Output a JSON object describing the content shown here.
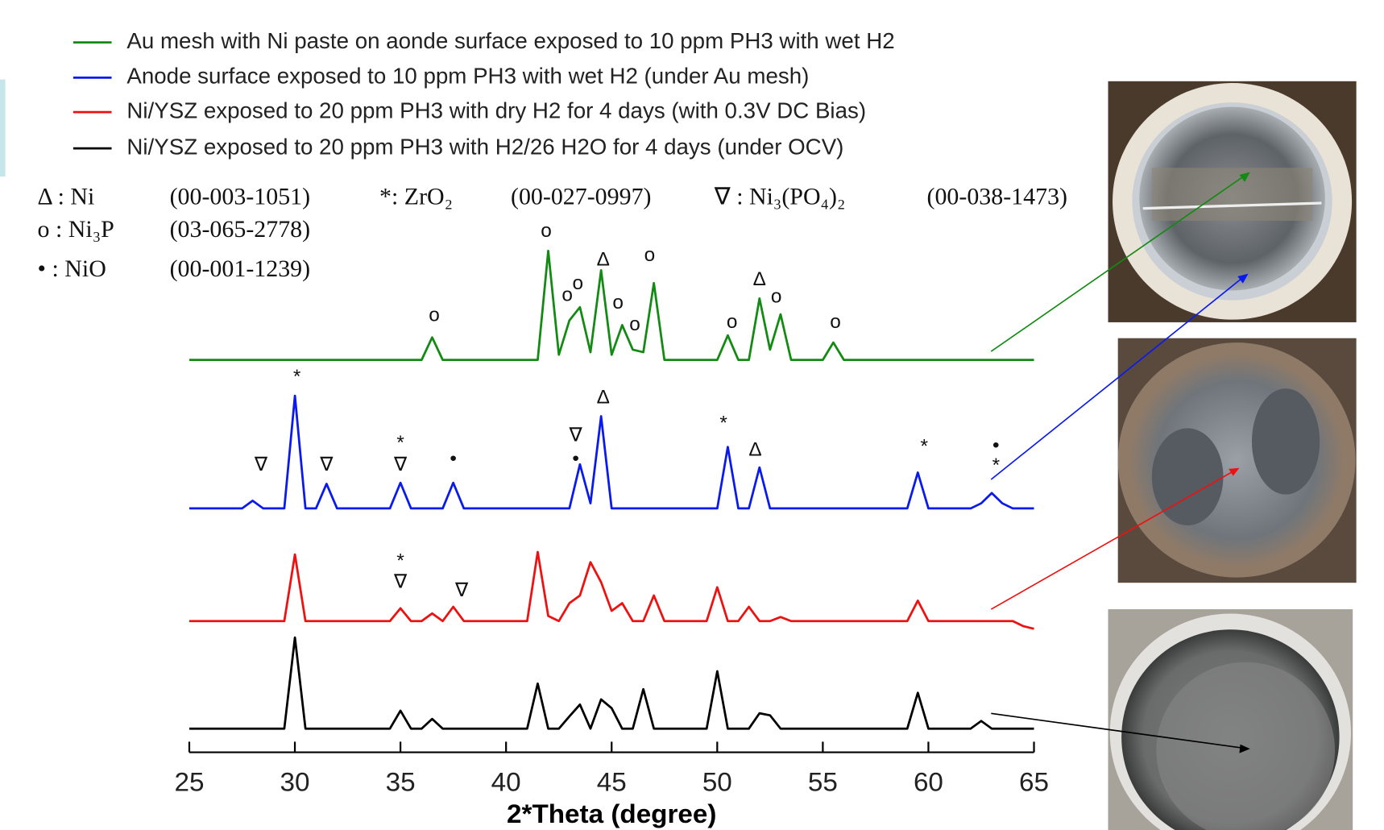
{
  "chart_data": {
    "type": "line",
    "xlabel": "2*Theta (degree)",
    "xlim": [
      25,
      65
    ],
    "xticks": [
      25,
      30,
      35,
      40,
      45,
      50,
      55,
      60,
      65
    ],
    "ylim": [
      0,
      110
    ],
    "legend": "top",
    "x": [
      25,
      25.5,
      26,
      26.5,
      27,
      27.5,
      28,
      28.5,
      29,
      29.5,
      30,
      30.5,
      31,
      31.5,
      32,
      32.5,
      33,
      33.5,
      34,
      34.5,
      35,
      35.5,
      36,
      36.5,
      37,
      37.5,
      38,
      38.5,
      39,
      39.5,
      40,
      40.5,
      41,
      41.5,
      42,
      42.5,
      43,
      43.5,
      44,
      44.5,
      45,
      45.5,
      46,
      46.5,
      47,
      47.5,
      48,
      48.5,
      49,
      49.5,
      50,
      50.5,
      51,
      51.5,
      52,
      52.5,
      53,
      53.5,
      54,
      54.5,
      55,
      55.5,
      56,
      56.5,
      57,
      57.5,
      58,
      58.5,
      59,
      59.5,
      60,
      60.5,
      61,
      61.5,
      62,
      62.5,
      63,
      63.5,
      64,
      64.5,
      65
    ],
    "series": [
      {
        "name": "Au mesh with Ni paste on aonde surface exposed to 10 ppm PH3 with wet H2",
        "color": "#138a13",
        "values": [
          78,
          78,
          78,
          78,
          78,
          78,
          78,
          78,
          78,
          78,
          78,
          78,
          78,
          78,
          78,
          78,
          78,
          78,
          78,
          78,
          78,
          78,
          78,
          82.4,
          78,
          78,
          78,
          78,
          78,
          78,
          78,
          78,
          78,
          78,
          99.3,
          79,
          85.7,
          88.3,
          79.5,
          95.5,
          79,
          84.8,
          80,
          79.5,
          93,
          78,
          78,
          78,
          78,
          78,
          78,
          82.8,
          78,
          78,
          90,
          80,
          86.9,
          78,
          78,
          78,
          78,
          81.4,
          78,
          78,
          78,
          78,
          78,
          78,
          78,
          78,
          78,
          78,
          78,
          78,
          78,
          78,
          78,
          78,
          78,
          78,
          78
        ]
      },
      {
        "name": "Anode surface exposed to 10 ppm PH3 with wet H2 (under Au mesh)",
        "color": "#0a1aee",
        "values": [
          49,
          49,
          49,
          49,
          49,
          49,
          50.5,
          49,
          49,
          49,
          71,
          49,
          49,
          53.8,
          49,
          49,
          49,
          49,
          49,
          49,
          54,
          49,
          49,
          49,
          49,
          54,
          49,
          49,
          49,
          49,
          49,
          49,
          49,
          49,
          49,
          49,
          49,
          57.6,
          50,
          67,
          49,
          49,
          49,
          49,
          49,
          49,
          49,
          49,
          49,
          49,
          49,
          61,
          49,
          49,
          57,
          49,
          49,
          49,
          49,
          49,
          49,
          49,
          49,
          49,
          49,
          49,
          49,
          49,
          49,
          56,
          49,
          49,
          49,
          49,
          49,
          50,
          52,
          50,
          49,
          49,
          49
        ]
      },
      {
        "name": "Ni/YSZ exposed to 20 ppm PH3 with dry H2 for 4 days (with 0.3V DC Bias)",
        "color": "#ee1111",
        "values": [
          27,
          27,
          27,
          27,
          27,
          27,
          27,
          27,
          27,
          27,
          40,
          27,
          27,
          27,
          27,
          27,
          27,
          27,
          27,
          27,
          29.5,
          27,
          27,
          28.5,
          27,
          29.8,
          27,
          27,
          27,
          27,
          27,
          27,
          27,
          40.5,
          28,
          27,
          30.5,
          32,
          38.5,
          34.6,
          29,
          30.5,
          27,
          27,
          32,
          27,
          27,
          27,
          27,
          27,
          33.6,
          27,
          27,
          29.8,
          27,
          27,
          27.8,
          27,
          27,
          27,
          27,
          27,
          27,
          27,
          27,
          27,
          27,
          27,
          27,
          31,
          27,
          27,
          27,
          27,
          27,
          27,
          27,
          27,
          27,
          26,
          25.5
        ]
      },
      {
        "name": "Ni/YSZ exposed to 20 ppm PH3 with H2/26 H2O for 4 days (under OCV)",
        "color": "#000000",
        "values": [
          6,
          6,
          6,
          6,
          6,
          6,
          6,
          6,
          6,
          6,
          23.8,
          6,
          6,
          6,
          6,
          6,
          6,
          6,
          6,
          6,
          9.5,
          6,
          6,
          7.9,
          6,
          6,
          6,
          6,
          6,
          6,
          6,
          6,
          6,
          14.8,
          6,
          6,
          8.4,
          10.7,
          6,
          11.7,
          10,
          6,
          6,
          13.7,
          6,
          6,
          6,
          6,
          6,
          6,
          17.2,
          6,
          6,
          6,
          9,
          8.6,
          6,
          6,
          6,
          6,
          6,
          6,
          6,
          6,
          6,
          6,
          6,
          6,
          6,
          13,
          6,
          6,
          6,
          6,
          6,
          7.5,
          6,
          6,
          6,
          6,
          6
        ]
      }
    ],
    "phase_key": [
      {
        "phase": "Δ : Ni",
        "card": "(00-003-1051)"
      },
      {
        "phase": "*: ZrO₂",
        "card": "(00-027-0997)"
      },
      {
        "phase": "∇ : Ni₃(PO₄)₂",
        "card": "(00-038-1473)"
      },
      {
        "phase": "o : Ni₃P",
        "card": "(03-065-2778)"
      },
      {
        "phase": "• : NiO",
        "card": "(00-001-1239)"
      }
    ],
    "annotations": [
      {
        "x": 36.6,
        "y": 86.6,
        "text": "o"
      },
      {
        "x": 41.9,
        "y": 103,
        "text": "o"
      },
      {
        "x": 42.9,
        "y": 90.5,
        "text": "o"
      },
      {
        "x": 43.4,
        "y": 92.8,
        "text": "o"
      },
      {
        "x": 44.6,
        "y": 97.4,
        "text": "Δ"
      },
      {
        "x": 45.3,
        "y": 89,
        "text": "o"
      },
      {
        "x": 46.1,
        "y": 84.8,
        "text": "o"
      },
      {
        "x": 46.8,
        "y": 98.3,
        "text": "o"
      },
      {
        "x": 50.7,
        "y": 85.2,
        "text": "o"
      },
      {
        "x": 52.0,
        "y": 93.6,
        "text": "Δ"
      },
      {
        "x": 52.8,
        "y": 90.2,
        "text": "o"
      },
      {
        "x": 55.6,
        "y": 85.2,
        "text": "o"
      },
      {
        "x": 28.4,
        "y": 57.4,
        "text": "∇"
      },
      {
        "x": 30.1,
        "y": 74.5,
        "text": "*"
      },
      {
        "x": 31.5,
        "y": 57.4,
        "text": "∇"
      },
      {
        "x": 35.0,
        "y": 61.6,
        "text": "*"
      },
      {
        "x": 35.0,
        "y": 57.4,
        "text": "∇"
      },
      {
        "x": 37.5,
        "y": 58.6,
        "text": "•"
      },
      {
        "x": 43.3,
        "y": 63.1,
        "text": "∇"
      },
      {
        "x": 43.3,
        "y": 58.6,
        "text": "•"
      },
      {
        "x": 44.6,
        "y": 70.5,
        "text": "Δ"
      },
      {
        "x": 50.3,
        "y": 65.5,
        "text": "*"
      },
      {
        "x": 51.8,
        "y": 60.3,
        "text": "Δ"
      },
      {
        "x": 59.8,
        "y": 60.9,
        "text": "*"
      },
      {
        "x": 63.2,
        "y": 61.2,
        "text": "•"
      },
      {
        "x": 63.2,
        "y": 57.2,
        "text": "*"
      },
      {
        "x": 35.0,
        "y": 38.6,
        "text": "*"
      },
      {
        "x": 35.0,
        "y": 34.5,
        "text": "∇"
      },
      {
        "x": 37.9,
        "y": 32.8,
        "text": "∇"
      }
    ]
  }
}
